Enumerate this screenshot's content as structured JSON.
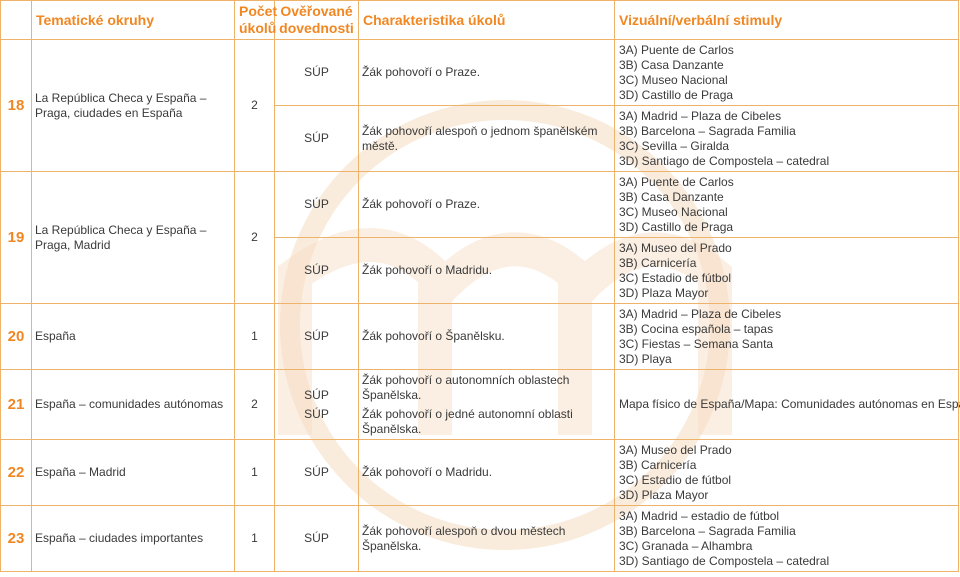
{
  "headers": {
    "topics": "Tematické okruhy",
    "count": "Počet úkolů",
    "skills": "Ověřované dovednosti",
    "task": "Charakteristika úkolů",
    "stimuli": "Vizuální/verbální stimuly"
  },
  "rows": [
    {
      "num": "18",
      "topic": "La República Checa y España – Praga, ciudades en España",
      "count": "2",
      "skills": [
        "SÚP",
        "SÚP"
      ],
      "tasks": [
        "Žák pohovoří o Praze.",
        "Žák pohovoří alespoň o jednom španělském městě."
      ]
    },
    {
      "num": "19",
      "topic": "La República Checa y España – Praga, Madrid",
      "count": "2",
      "skills": [
        "SÚP",
        "SÚP"
      ],
      "tasks": [
        "Žák pohovoří o Praze.",
        "Žák pohovoří o Madridu."
      ]
    },
    {
      "num": "20",
      "topic": "España",
      "count": "1",
      "skills": [
        "SÚP"
      ],
      "tasks": [
        "Žák pohovoří o Španělsku."
      ]
    },
    {
      "num": "21",
      "topic": "España – comunidades autónomas",
      "count": "2",
      "skills": [
        "SÚP",
        "SÚP"
      ],
      "tasks": [
        "Žák pohovoří o autonomních oblastech Španělska.",
        "Žák pohovoří o jedné autonomní oblasti Španělska."
      ]
    },
    {
      "num": "22",
      "topic": "España – Madrid",
      "count": "1",
      "skills": [
        "SÚP"
      ],
      "tasks": [
        "Žák pohovoří o Madridu."
      ]
    },
    {
      "num": "23",
      "topic": "España – ciudades importantes",
      "count": "1",
      "skills": [
        "SÚP"
      ],
      "tasks": [
        "Žák pohovoří alespoň o dvou městech Španělska."
      ]
    }
  ],
  "stimuli": [
    [
      "3A)  Puente de Carlos",
      "3B)  Casa Danzante",
      "3C)  Museo Nacional",
      "3D)  Castillo de Praga"
    ],
    [
      "3A)  Madrid – Plaza de Cibeles",
      "3B)  Barcelona – Sagrada Familia",
      "3C)  Sevilla – Giralda",
      "3D)  Santiago de Compostela – catedral"
    ],
    [
      "3A)  Puente de Carlos",
      "3B)  Casa Danzante",
      "3C)  Museo Nacional",
      "3D)  Castillo de Praga"
    ],
    [
      "3A)  Museo del Prado",
      "3B)  Carnicería",
      "3C)  Estadio de fútbol",
      "3D)  Plaza Mayor"
    ],
    [
      "3A)  Madrid – Plaza de Cibeles",
      "3B)  Cocina española – tapas",
      "3C)  Fiestas – Semana Santa",
      "3D)  Playa"
    ],
    [
      "Mapa físico de España/Mapa: Comunidades autónomas en España"
    ],
    [
      "3A)  Museo del Prado",
      "3B)  Carnicería",
      "3C)  Estadio de fútbol",
      "3D)  Plaza Mayor"
    ],
    [
      "3A)  Madrid – estadio de fútbol",
      "3B)  Barcelona – Sagrada Familia",
      "3C)  Granada – Alhambra",
      "3D)  Santiago de Compostela – catedral"
    ]
  ],
  "colors": {
    "accent": "#f08722",
    "border": "#eeb36a",
    "text": "#3a3a3a"
  }
}
